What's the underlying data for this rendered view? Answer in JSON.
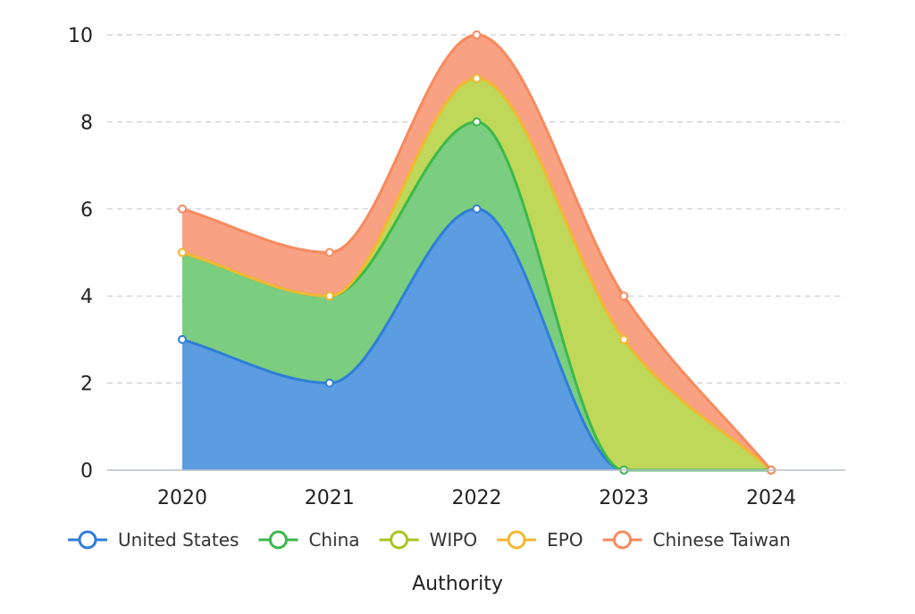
{
  "chart_data": {
    "type": "area",
    "stacked": true,
    "categories": [
      "2020",
      "2021",
      "2022",
      "2023",
      "2024"
    ],
    "series": [
      {
        "name": "United States",
        "values": [
          3,
          2,
          6,
          0,
          0
        ],
        "color": "#2f7ed8",
        "fill": "#5b9de0"
      },
      {
        "name": "China",
        "values": [
          2,
          2,
          2,
          0,
          0
        ],
        "color": "#3cb84a",
        "fill": "#7bcd7f"
      },
      {
        "name": "WIPO",
        "values": [
          0,
          0,
          1,
          3,
          0
        ],
        "color": "#a7c521",
        "fill": "#bfd85a"
      },
      {
        "name": "EPO",
        "values": [
          0,
          0,
          0,
          0,
          0
        ],
        "color": "#f5b731",
        "fill": "#f8cf6a"
      },
      {
        "name": "Chinese Taiwan",
        "values": [
          1,
          1,
          1,
          1,
          0
        ],
        "color": "#f78a5e",
        "fill": "#f8a183"
      }
    ],
    "xlabel": "Authority",
    "ylabel": "",
    "ylim": [
      0,
      10
    ],
    "yticks": [
      0,
      2,
      4,
      6,
      8,
      10
    ],
    "grid": true,
    "legend_position": "bottom"
  }
}
